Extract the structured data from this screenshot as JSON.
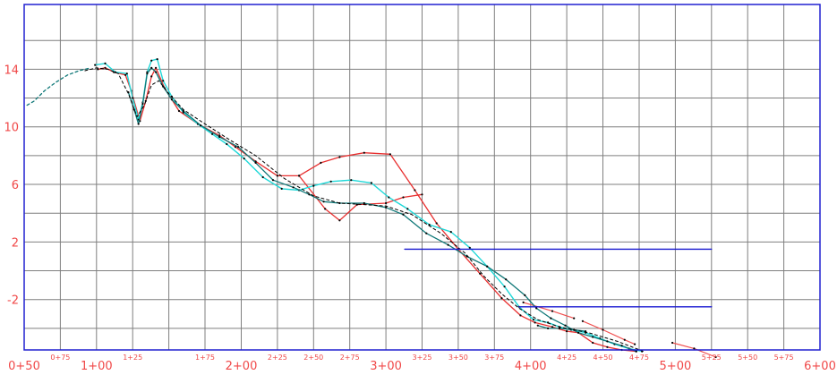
{
  "chart_data": {
    "type": "line",
    "title": "",
    "xlabel": "",
    "ylabel": "",
    "xlim": [
      50,
      600
    ],
    "ylim": [
      -5.5,
      18.5
    ],
    "grid": true,
    "legend": "none",
    "colors": {
      "frame": "#2020d0",
      "grid": "#7f7f7f",
      "tick_labels": "#f04848",
      "red": "#e83030",
      "cyan": "#20d8d8",
      "teal": "#107878",
      "black": "#000000",
      "blue": "#1818d0",
      "pink": "#f05050"
    },
    "y_ticks": [
      {
        "value": 14,
        "label": "14"
      },
      {
        "value": 10,
        "label": "10"
      },
      {
        "value": 6,
        "label": "6"
      },
      {
        "value": 2,
        "label": "2"
      },
      {
        "value": -2,
        "label": "-2"
      }
    ],
    "y_grid": [
      16,
      14,
      12,
      10,
      8,
      6,
      4,
      2,
      0,
      -2,
      -4
    ],
    "x_ticks": [
      {
        "value": 50,
        "label": "0+50",
        "major": true
      },
      {
        "value": 75,
        "label": "0+75",
        "major": false
      },
      {
        "value": 100,
        "label": "1+00",
        "major": true
      },
      {
        "value": 125,
        "label": "1+25",
        "major": false
      },
      {
        "value": 175,
        "label": "1+75",
        "major": false
      },
      {
        "value": 200,
        "label": "2+00",
        "major": true
      },
      {
        "value": 225,
        "label": "2+25",
        "major": false
      },
      {
        "value": 250,
        "label": "2+50",
        "major": false
      },
      {
        "value": 275,
        "label": "2+75",
        "major": false
      },
      {
        "value": 300,
        "label": "3+00",
        "major": true
      },
      {
        "value": 325,
        "label": "3+25",
        "major": false
      },
      {
        "value": 350,
        "label": "3+50",
        "major": false
      },
      {
        "value": 375,
        "label": "3+75",
        "major": false
      },
      {
        "value": 400,
        "label": "4+00",
        "major": true
      },
      {
        "value": 425,
        "label": "4+25",
        "major": false
      },
      {
        "value": 450,
        "label": "4+50",
        "major": false
      },
      {
        "value": 475,
        "label": "4+75",
        "major": false
      },
      {
        "value": 500,
        "label": "5+00",
        "major": true
      },
      {
        "value": 525,
        "label": "5+25",
        "major": false
      },
      {
        "value": 550,
        "label": "5+50",
        "major": false
      },
      {
        "value": 575,
        "label": "5+75",
        "major": false
      },
      {
        "value": 600,
        "label": "6+00",
        "major": true
      }
    ],
    "x_grid": [
      75,
      100,
      125,
      150,
      175,
      200,
      225,
      250,
      275,
      300,
      325,
      350,
      375,
      400,
      425,
      450,
      475,
      500,
      525,
      550,
      575
    ],
    "series": [
      {
        "color": "red",
        "width": 1.3,
        "dashed": false,
        "x": [
          101,
          106,
          112,
          120,
          124,
          130,
          134,
          138,
          141,
          147,
          157,
          170,
          185,
          196,
          210,
          225,
          240,
          255,
          268,
          285,
          303,
          320,
          335,
          350,
          365,
          380,
          393,
          403,
          415,
          425,
          433,
          443,
          453,
          463,
          473
        ],
        "y": [
          14.0,
          14.1,
          13.8,
          13.6,
          12.5,
          10.4,
          11.8,
          13.5,
          14.1,
          12.7,
          11.1,
          10.2,
          9.4,
          8.6,
          7.6,
          6.6,
          6.6,
          7.5,
          7.9,
          8.2,
          8.1,
          5.6,
          3.3,
          1.5,
          -0.2,
          -1.9,
          -3.1,
          -3.6,
          -3.9,
          -4.2,
          -4.3,
          -5.0,
          -5.3,
          -5.5,
          -5.6
        ]
      },
      {
        "color": "red",
        "width": 1.3,
        "dashed": false,
        "x": [
          240,
          258,
          268,
          280,
          300,
          312,
          325
        ],
        "y": [
          6.6,
          4.3,
          3.5,
          4.6,
          4.7,
          5.1,
          5.3
        ]
      },
      {
        "color": "pink",
        "width": 1.2,
        "dashed": false,
        "x": [
          395,
          415,
          430
        ],
        "y": [
          -2.2,
          -2.8,
          -3.3
        ]
      },
      {
        "color": "pink",
        "width": 1.2,
        "dashed": false,
        "x": [
          436,
          450,
          465,
          472
        ],
        "y": [
          -3.5,
          -4.1,
          -4.8,
          -5.1
        ]
      },
      {
        "color": "pink",
        "width": 1.2,
        "dashed": false,
        "x": [
          498,
          513,
          528
        ],
        "y": [
          -5.0,
          -5.4,
          -6.0
        ]
      },
      {
        "color": "cyan",
        "width": 1.4,
        "dashed": false,
        "x": [
          99,
          106,
          113,
          121,
          125,
          129,
          132,
          135,
          138,
          142,
          146,
          152,
          160,
          170,
          180,
          190,
          202,
          215,
          228,
          240,
          250,
          262,
          276,
          290,
          302,
          315,
          330,
          345,
          358,
          370,
          382,
          392,
          402,
          412,
          420,
          428,
          438,
          448,
          458,
          468,
          477
        ],
        "y": [
          14.3,
          14.4,
          13.8,
          13.7,
          12.0,
          10.5,
          11.7,
          13.8,
          14.6,
          14.7,
          13.2,
          12.1,
          11.0,
          10.2,
          9.5,
          8.8,
          7.8,
          6.5,
          5.7,
          5.6,
          5.9,
          6.2,
          6.3,
          6.1,
          5.1,
          4.3,
          3.2,
          2.7,
          1.6,
          0.3,
          -1.1,
          -2.5,
          -3.4,
          -3.6,
          -3.9,
          -4.1,
          -4.3,
          -4.7,
          -5.1,
          -5.4,
          -5.6
        ]
      },
      {
        "color": "teal",
        "width": 1.3,
        "dashed": false,
        "x": [
          122,
          126,
          129,
          132,
          135,
          138,
          141,
          146,
          152,
          160,
          172,
          185,
          198,
          210,
          222,
          236,
          247,
          257,
          268,
          285,
          300,
          312,
          328,
          343,
          356,
          370,
          383,
          396,
          404,
          414,
          424,
          433,
          443,
          453,
          463,
          473
        ],
        "y": [
          12.4,
          11.2,
          10.2,
          11.6,
          13.7,
          14.1,
          13.8,
          12.8,
          11.9,
          11.1,
          10.1,
          9.3,
          8.6,
          7.5,
          6.3,
          5.8,
          5.3,
          4.8,
          4.7,
          4.7,
          4.4,
          3.9,
          2.6,
          1.8,
          1.0,
          0.3,
          -0.6,
          -1.7,
          -2.6,
          -3.3,
          -3.8,
          -4.3,
          -4.6,
          -4.9,
          -5.2,
          -5.6
        ]
      },
      {
        "color": "teal",
        "width": 1.3,
        "dashed": true,
        "x": [
          52,
          57,
          64,
          72,
          80,
          88,
          96
        ],
        "y": [
          11.5,
          11.8,
          12.5,
          13.1,
          13.6,
          13.9,
          14.1
        ]
      },
      {
        "color": "teal",
        "width": 1.3,
        "dashed": false,
        "x": [
          405,
          412,
          420,
          430,
          438
        ],
        "y": [
          -3.8,
          -4.0,
          -4.0,
          -4.1,
          -4.2
        ]
      },
      {
        "color": "black",
        "width": 1.0,
        "dashed": true,
        "x": [
          92,
          100,
          108,
          115,
          122,
          128,
          133,
          138,
          143,
          150,
          160,
          175,
          192,
          210,
          230,
          250,
          268,
          285,
          300,
          318,
          338,
          355,
          368,
          380,
          392,
          405,
          420,
          440,
          460,
          478
        ],
        "y": [
          13.9,
          14.1,
          14.0,
          13.7,
          12.3,
          10.7,
          11.5,
          12.9,
          13.2,
          12.3,
          11.2,
          10.2,
          9.1,
          8.0,
          6.4,
          5.2,
          4.7,
          4.6,
          4.5,
          3.9,
          2.6,
          1.2,
          -0.4,
          -1.6,
          -2.6,
          -3.4,
          -3.9,
          -4.3,
          -4.9,
          -5.6
        ]
      },
      {
        "color": "blue",
        "width": 1.4,
        "dashed": false,
        "x": [
          313,
          525
        ],
        "y": [
          1.5,
          1.5
        ]
      },
      {
        "color": "blue",
        "width": 1.4,
        "dashed": false,
        "x": [
          392,
          525
        ],
        "y": [
          -2.5,
          -2.5
        ]
      }
    ]
  }
}
